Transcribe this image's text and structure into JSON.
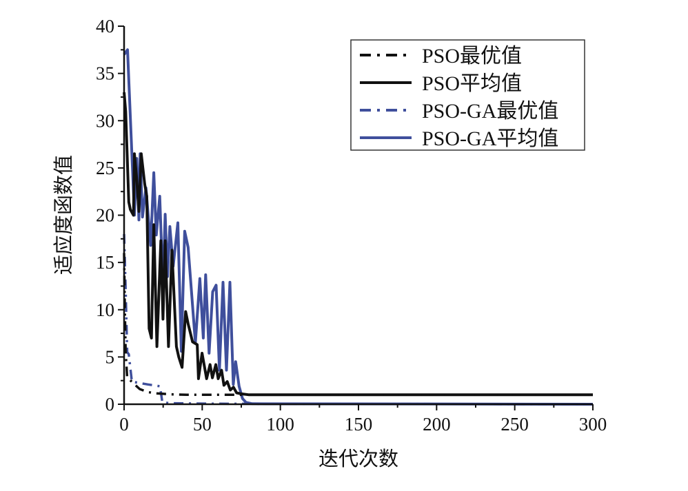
{
  "chart_data": {
    "type": "line",
    "xlabel": "迭代次数",
    "ylabel": "适应度函数值",
    "xlim": [
      0,
      300
    ],
    "ylim": [
      0,
      40
    ],
    "xticks": [
      "0",
      "50",
      "100",
      "150",
      "200",
      "250",
      "300"
    ],
    "yticks": [
      "0",
      "5",
      "10",
      "15",
      "20",
      "25",
      "30",
      "35",
      "40"
    ],
    "grid": false,
    "legend_position": "top-right",
    "series": [
      {
        "name": "PSO最优值",
        "color": "#111111",
        "style": "dash-dot",
        "points": [
          [
            0,
            16
          ],
          [
            0.5,
            10
          ],
          [
            1,
            5.5
          ],
          [
            2,
            2.8
          ],
          [
            3,
            2.7
          ],
          [
            6,
            2.2
          ],
          [
            10,
            1.6
          ],
          [
            15,
            1.3
          ],
          [
            20,
            1.15
          ],
          [
            30,
            1.05
          ],
          [
            40,
            1
          ],
          [
            300,
            1
          ]
        ]
      },
      {
        "name": "PSO平均值",
        "color": "#111111",
        "style": "solid",
        "points": [
          [
            0,
            33
          ],
          [
            1,
            31
          ],
          [
            3,
            21.4
          ],
          [
            4,
            20.6
          ],
          [
            6,
            20
          ],
          [
            6.6,
            26.5
          ],
          [
            8,
            24
          ],
          [
            9.5,
            20.4
          ],
          [
            11,
            26.5
          ],
          [
            13.2,
            23.3
          ],
          [
            14.5,
            22
          ],
          [
            16,
            8
          ],
          [
            17.5,
            7
          ],
          [
            19,
            19
          ],
          [
            21,
            6.1
          ],
          [
            23.5,
            17.3
          ],
          [
            24.9,
            9
          ],
          [
            26.3,
            17.3
          ],
          [
            28.4,
            6.1
          ],
          [
            30.6,
            16.3
          ],
          [
            33.5,
            6.1
          ],
          [
            35,
            5
          ],
          [
            37.1,
            3.9
          ],
          [
            39.4,
            9.8
          ],
          [
            41,
            8.5
          ],
          [
            43.8,
            6.6
          ],
          [
            46.8,
            6.3
          ],
          [
            47.6,
            2.7
          ],
          [
            49.9,
            5.4
          ],
          [
            52.8,
            2.7
          ],
          [
            55,
            4.2
          ],
          [
            56.5,
            2.8
          ],
          [
            58.7,
            4.2
          ],
          [
            60.2,
            2.7
          ],
          [
            62.4,
            3.6
          ],
          [
            63.9,
            2.0
          ],
          [
            66,
            2.4
          ],
          [
            68,
            1.5
          ],
          [
            70,
            1.8
          ],
          [
            72,
            1.2
          ],
          [
            75,
            1.1
          ],
          [
            80,
            1
          ],
          [
            300,
            1
          ]
        ]
      },
      {
        "name": "PSO-GA最优值",
        "color": "#3f4f9c",
        "style": "dash-dot",
        "points": [
          [
            0,
            18
          ],
          [
            1,
            12
          ],
          [
            2,
            5.5
          ],
          [
            3,
            5.3
          ],
          [
            5,
            2.4
          ],
          [
            8,
            2.3
          ],
          [
            15,
            2.1
          ],
          [
            23,
            1.9
          ],
          [
            24.5,
            0.2
          ],
          [
            30,
            0.1
          ],
          [
            60,
            0.05
          ],
          [
            300,
            0
          ]
        ]
      },
      {
        "name": "PSO-GA平均值",
        "color": "#3f4f9c",
        "style": "solid",
        "points": [
          [
            0,
            37
          ],
          [
            2.2,
            37.5
          ],
          [
            6.6,
            20
          ],
          [
            8.1,
            26
          ],
          [
            9.5,
            19.5
          ],
          [
            10.3,
            26.5
          ],
          [
            11.8,
            19.8
          ],
          [
            14,
            22.9
          ],
          [
            17,
            16.8
          ],
          [
            19,
            24.5
          ],
          [
            20.6,
            17.9
          ],
          [
            22.8,
            22
          ],
          [
            24.9,
            12.4
          ],
          [
            26.3,
            20.1
          ],
          [
            27.8,
            13.5
          ],
          [
            29.3,
            18.8
          ],
          [
            31.4,
            14.6
          ],
          [
            34.4,
            19.2
          ],
          [
            36.6,
            5.6
          ],
          [
            38.8,
            18.3
          ],
          [
            41,
            16.6
          ],
          [
            45.6,
            6.5
          ],
          [
            48.5,
            13.3
          ],
          [
            50.7,
            7
          ],
          [
            52.2,
            13.7
          ],
          [
            54.4,
            5.4
          ],
          [
            56.7,
            11.9
          ],
          [
            58.9,
            12.6
          ],
          [
            61,
            3.6
          ],
          [
            63.3,
            12.9
          ],
          [
            65.5,
            3.6
          ],
          [
            67.7,
            12.9
          ],
          [
            69.9,
            2.1
          ],
          [
            71.4,
            4.5
          ],
          [
            73.6,
            1.9
          ],
          [
            75.8,
            0.6
          ],
          [
            78,
            0.2
          ],
          [
            82,
            0.05
          ],
          [
            300,
            0
          ]
        ]
      }
    ]
  }
}
